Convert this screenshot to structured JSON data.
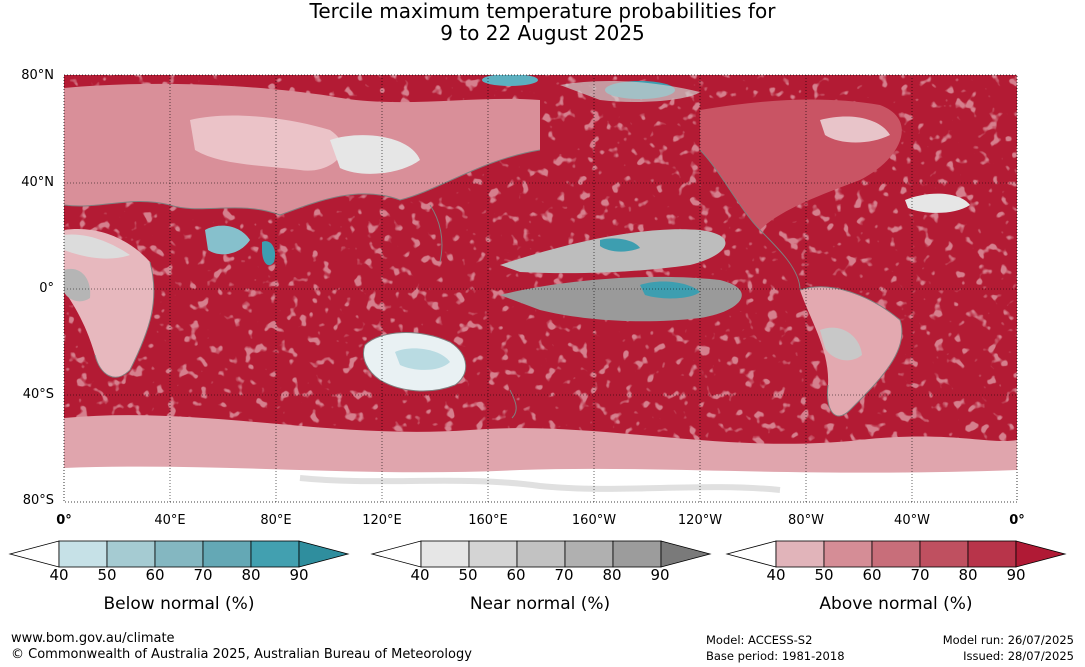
{
  "title": {
    "line1": "Tercile maximum temperature probabilities for",
    "line2": "9 to 22 August 2025"
  },
  "map": {
    "lat_labels": [
      "80°N",
      "40°N",
      "0°",
      "40°S",
      "80°S"
    ],
    "lon_labels": [
      "0°",
      "40°E",
      "80°E",
      "120°E",
      "160°E",
      "160°W",
      "120°W",
      "80°W",
      "40°W",
      "0°"
    ],
    "dominant_category": "above-normal",
    "colors": {
      "ocean_above": "#b31b34",
      "land_above_mid": "#cd6b78",
      "land_above_low": "#e1a3ab",
      "near_normal": "#a8a8a8",
      "below_normal": "#3d9eb0",
      "coastline": "#7f7f7f"
    }
  },
  "colorbars": [
    {
      "id": "below",
      "title": "Below normal (%)",
      "ticks": [
        "40",
        "50",
        "60",
        "70",
        "80",
        "90"
      ],
      "colors": [
        "#ffffff",
        "#c6e1e7",
        "#a5cbd2",
        "#84b7c1",
        "#64a8b5",
        "#42a0b0",
        "#2f8e9e"
      ]
    },
    {
      "id": "near",
      "title": "Near normal (%)",
      "ticks": [
        "40",
        "50",
        "60",
        "70",
        "80",
        "90"
      ],
      "colors": [
        "#ffffff",
        "#e6e6e6",
        "#d4d4d4",
        "#c2c2c2",
        "#b0b0b0",
        "#9c9c9c",
        "#7a7a7a"
      ]
    },
    {
      "id": "above",
      "title": "Above normal (%)",
      "ticks": [
        "40",
        "50",
        "60",
        "70",
        "80",
        "90"
      ],
      "colors": [
        "#ffffff",
        "#e1b4ba",
        "#d58d96",
        "#c86e7a",
        "#bf5060",
        "#b8344a",
        "#b01a35"
      ]
    }
  ],
  "footer": {
    "website": "www.bom.gov.au/climate",
    "copyright": "© Commonwealth of Australia 2025, Australian Bureau of Meteorology",
    "model": "Model: ACCESS-S2",
    "base_period": "Base period: 1981-2018",
    "model_run": "Model run: 26/07/2025",
    "issued": "Issued: 28/07/2025"
  }
}
